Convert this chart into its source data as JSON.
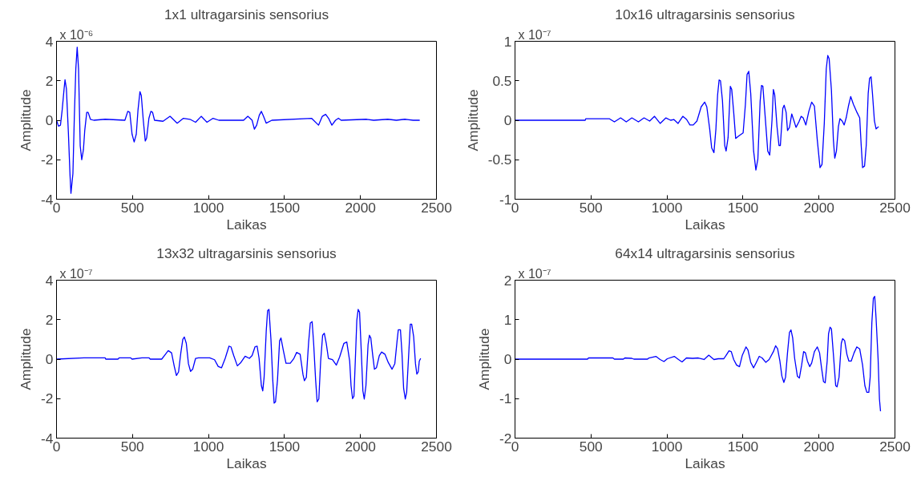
{
  "chart_data": [
    {
      "type": "line",
      "title": "1x1 ultragarsinis sensorius",
      "xlabel": "Laikas",
      "ylabel": "Amplitude",
      "annotations": [
        "x 10⁻⁶"
      ],
      "color": "#0000ff",
      "xlim": [
        0,
        2500
      ],
      "ylim": [
        -4,
        4
      ],
      "xticks": [
        0,
        500,
        1000,
        1500,
        2000,
        2500
      ],
      "yticks": [
        -4,
        -2,
        0,
        2,
        4
      ],
      "x": [
        0,
        13,
        26,
        37,
        50,
        56,
        65,
        78,
        89,
        95,
        108,
        117,
        127,
        136,
        145,
        156,
        166,
        177,
        186,
        199,
        208,
        223,
        245,
        320,
        450,
        469,
        482,
        497,
        511,
        525,
        536,
        549,
        558,
        571,
        584,
        593,
        608,
        621,
        632,
        645,
        701,
        747,
        794,
        835,
        878,
        915,
        952,
        990,
        1030,
        1068,
        1231,
        1259,
        1287,
        1302,
        1317,
        1334,
        1348,
        1362,
        1380,
        1417,
        1678,
        1724,
        1749,
        1771,
        1790,
        1812,
        1836,
        1855,
        1873,
        2041,
        2087,
        2180,
        2236,
        2292,
        2347,
        2390
      ],
      "values": [
        0,
        -0.3,
        -0.25,
        0.5,
        1.6,
        2.05,
        1.6,
        -0.6,
        -2.8,
        -3.7,
        -2.7,
        0.1,
        2.6,
        3.7,
        2.6,
        -1.3,
        -2.0,
        -1.5,
        -0.5,
        0.4,
        0.4,
        0.05,
        0,
        0.05,
        0,
        0.45,
        0.4,
        -0.7,
        -1.1,
        -0.7,
        0.5,
        1.45,
        1.25,
        0,
        -1.05,
        -0.9,
        0.1,
        0.45,
        0.4,
        0,
        -0.05,
        0.2,
        -0.15,
        0.1,
        0.05,
        -0.1,
        0.2,
        -0.1,
        0.1,
        0,
        0,
        0.2,
        0,
        -0.45,
        -0.25,
        0.25,
        0.45,
        0.2,
        -0.15,
        0,
        0.1,
        -0.25,
        0.2,
        0.3,
        0.1,
        -0.25,
        0,
        0.1,
        0,
        0.05,
        0,
        0.05,
        0,
        0.05,
        0,
        0
      ]
    },
    {
      "type": "line",
      "title": "10x16 ultragarsinis sensorius",
      "xlabel": "Laikas",
      "ylabel": "Amplitude",
      "annotations": [
        "x 10⁻⁷"
      ],
      "color": "#0000ff",
      "xlim": [
        0,
        2500
      ],
      "ylim": [
        -1,
        1
      ],
      "xticks": [
        0,
        500,
        1000,
        1500,
        2000,
        2500
      ],
      "yticks": [
        -1,
        -0.5,
        0,
        0.5,
        1
      ],
      "x": [
        0,
        462,
        466,
        620,
        654,
        695,
        732,
        769,
        812,
        849,
        886,
        918,
        955,
        993,
        1024,
        1045,
        1073,
        1104,
        1129,
        1151,
        1173,
        1197,
        1225,
        1248,
        1262,
        1281,
        1294,
        1309,
        1322,
        1333,
        1343,
        1352,
        1365,
        1380,
        1389,
        1402,
        1417,
        1426,
        1439,
        1452,
        1471,
        1501,
        1516,
        1527,
        1538,
        1551,
        1570,
        1585,
        1598,
        1613,
        1622,
        1631,
        1644,
        1663,
        1676,
        1691,
        1700,
        1709,
        1724,
        1737,
        1746,
        1762,
        1771,
        1784,
        1793,
        1806,
        1821,
        1836,
        1849,
        1868,
        1883,
        1896,
        1914,
        1933,
        1952,
        1970,
        1989,
        2007,
        2020,
        2035,
        2048,
        2058,
        2067,
        2082,
        2095,
        2104,
        2115,
        2128,
        2138,
        2153,
        2166,
        2179,
        2194,
        2209,
        2227,
        2250,
        2268,
        2278,
        2287,
        2300,
        2311,
        2324,
        2333,
        2343,
        2352,
        2365,
        2376,
        2393
      ],
      "values": [
        0,
        0,
        0.02,
        0.02,
        -0.02,
        0.03,
        -0.02,
        0.03,
        -0.02,
        0.03,
        -0.01,
        0.05,
        -0.04,
        0.03,
        0,
        0.01,
        -0.04,
        0.05,
        0.01,
        -0.06,
        -0.06,
        -0.01,
        0.17,
        0.23,
        0.17,
        -0.11,
        -0.35,
        -0.41,
        -0.11,
        0.32,
        0.51,
        0.5,
        0.25,
        -0.32,
        -0.39,
        -0.22,
        0.43,
        0.39,
        0.1,
        -0.23,
        -0.2,
        -0.16,
        0.2,
        0.58,
        0.62,
        0.34,
        -0.39,
        -0.63,
        -0.49,
        0.24,
        0.44,
        0.43,
        0.1,
        -0.39,
        -0.44,
        0,
        0.39,
        0.32,
        -0.08,
        -0.32,
        -0.32,
        0.15,
        0.19,
        0.1,
        -0.13,
        -0.09,
        0.08,
        -0.01,
        -0.09,
        -0.02,
        0.05,
        0.03,
        -0.06,
        0.11,
        0.23,
        0.18,
        -0.25,
        -0.6,
        -0.56,
        -0.04,
        0.65,
        0.82,
        0.78,
        0.38,
        -0.25,
        -0.48,
        -0.39,
        -0.08,
        0.02,
        -0.01,
        -0.06,
        0.03,
        0.18,
        0.3,
        0.2,
        0.1,
        0.03,
        -0.32,
        -0.6,
        -0.58,
        -0.32,
        0.34,
        0.53,
        0.55,
        0.34,
        -0.01,
        -0.11,
        -0.08
      ]
    },
    {
      "type": "line",
      "title": "13x32 ultragarsinis sensorius",
      "xlabel": "Laikas",
      "ylabel": "Amplitude",
      "annotations": [
        "x 10⁻⁷"
      ],
      "color": "#0000ff",
      "xlim": [
        0,
        2500
      ],
      "ylim": [
        -4,
        4
      ],
      "xticks": [
        0,
        500,
        1000,
        1500,
        2000,
        2500
      ],
      "yticks": [
        -4,
        -2,
        0,
        2,
        4
      ],
      "x": [
        0,
        180,
        320,
        324,
        404,
        413,
        487,
        497,
        562,
        608,
        617,
        692,
        710,
        735,
        757,
        775,
        789,
        803,
        818,
        831,
        841,
        854,
        868,
        882,
        896,
        915,
        934,
        1008,
        1040,
        1064,
        1086,
        1110,
        1135,
        1148,
        1166,
        1190,
        1213,
        1241,
        1269,
        1287,
        1306,
        1320,
        1333,
        1348,
        1357,
        1366,
        1380,
        1389,
        1398,
        1411,
        1423,
        1432,
        1441,
        1454,
        1468,
        1477,
        1492,
        1510,
        1538,
        1562,
        1580,
        1603,
        1622,
        1631,
        1644,
        1659,
        1670,
        1682,
        1692,
        1705,
        1715,
        1726,
        1738,
        1751,
        1762,
        1775,
        1789,
        1816,
        1841,
        1863,
        1891,
        1910,
        1929,
        1938,
        1948,
        1957,
        1966,
        1976,
        1985,
        1994,
        2005,
        2016,
        2025,
        2036,
        2050,
        2059,
        2068,
        2081,
        2092,
        2105,
        2124,
        2139,
        2161,
        2183,
        2208,
        2226,
        2241,
        2249,
        2263,
        2273,
        2284,
        2295,
        2304,
        2315,
        2328,
        2337,
        2350,
        2362,
        2371,
        2380,
        2387,
        2396
      ],
      "values": [
        0,
        0.07,
        0.07,
        0,
        0,
        0.07,
        0.07,
        0,
        0.07,
        0.07,
        0,
        0,
        0.18,
        0.43,
        0.32,
        -0.37,
        -0.83,
        -0.65,
        0.32,
        1.0,
        1.12,
        0.8,
        -0.23,
        -0.62,
        -0.51,
        0.04,
        0.07,
        0.07,
        -0.03,
        -0.37,
        -0.44,
        0.04,
        0.66,
        0.62,
        0.18,
        -0.34,
        -0.17,
        0.15,
        0.04,
        0.18,
        0.62,
        0.66,
        0.04,
        -1.34,
        -1.61,
        -0.92,
        1.42,
        2.46,
        2.52,
        1.0,
        -1.06,
        -2.23,
        -2.16,
        -1.06,
        0.93,
        1.07,
        0.46,
        -0.21,
        -0.21,
        0.04,
        0.34,
        0.25,
        -0.79,
        -1.09,
        -0.92,
        0.87,
        1.83,
        1.9,
        0.79,
        -1.06,
        -2.16,
        -2.02,
        -0.1,
        1.21,
        1.31,
        0.8,
        0.04,
        -0.03,
        -0.3,
        0.11,
        0.8,
        0.87,
        -0.1,
        -1.34,
        -2.0,
        -1.88,
        -0.1,
        1.97,
        2.52,
        2.38,
        0.46,
        -1.61,
        -2.02,
        -1.34,
        0.73,
        1.21,
        1.07,
        0.18,
        -0.51,
        -0.44,
        0.18,
        0.36,
        0.25,
        -0.17,
        -0.51,
        -0.23,
        0.93,
        1.49,
        1.49,
        0.32,
        -1.48,
        -2.02,
        -1.68,
        -0.1,
        1.77,
        1.77,
        1.14,
        -0.23,
        -0.76,
        -0.65,
        -0.1,
        0.04
      ]
    },
    {
      "type": "line",
      "title": "64x14 ultragarsinis sensorius",
      "xlabel": "Laikas",
      "ylabel": "Amplitude",
      "annotations": [
        "x 10⁻⁷"
      ],
      "color": "#0000ff",
      "xlim": [
        0,
        2500
      ],
      "ylim": [
        -2,
        2
      ],
      "xticks": [
        0,
        500,
        1000,
        1500,
        2000,
        2500
      ],
      "yticks": [
        -2,
        -1,
        0,
        1,
        2
      ],
      "x": [
        0,
        477,
        484,
        644,
        654,
        713,
        723,
        769,
        782,
        872,
        881,
        927,
        955,
        980,
        1002,
        1048,
        1076,
        1099,
        1128,
        1169,
        1206,
        1244,
        1275,
        1309,
        1337,
        1374,
        1393,
        1408,
        1423,
        1439,
        1458,
        1477,
        1495,
        1520,
        1533,
        1551,
        1570,
        1588,
        1607,
        1626,
        1650,
        1672,
        1700,
        1715,
        1728,
        1743,
        1756,
        1769,
        1780,
        1793,
        1806,
        1816,
        1827,
        1840,
        1858,
        1871,
        1886,
        1899,
        1911,
        1924,
        1939,
        1952,
        1970,
        1989,
        2004,
        2017,
        2030,
        2041,
        2054,
        2063,
        2073,
        2082,
        2097,
        2110,
        2119,
        2132,
        2147,
        2156,
        2169,
        2184,
        2197,
        2212,
        2231,
        2249,
        2268,
        2287,
        2302,
        2315,
        2328,
        2337,
        2348,
        2358,
        2367,
        2376,
        2389,
        2398,
        2405
      ],
      "values": [
        0,
        0,
        0.03,
        0.03,
        0,
        0,
        0.03,
        0.02,
        0,
        0,
        0.03,
        0.07,
        -0.01,
        -0.06,
        0.01,
        0.07,
        -0.01,
        -0.07,
        0.03,
        0.02,
        0.03,
        -0.01,
        0.1,
        -0.01,
        0.01,
        0.01,
        0.12,
        0.21,
        0.19,
        -0.01,
        -0.15,
        -0.19,
        0.09,
        0.31,
        0.23,
        -0.08,
        -0.22,
        -0.08,
        0.07,
        0.03,
        -0.08,
        -0.01,
        0.19,
        0.34,
        0.26,
        -0.05,
        -0.43,
        -0.59,
        -0.46,
        0.16,
        0.68,
        0.74,
        0.54,
        0.02,
        -0.43,
        -0.48,
        -0.15,
        0.19,
        0.16,
        -0.05,
        -0.19,
        -0.1,
        0.19,
        0.31,
        0.16,
        -0.22,
        -0.57,
        -0.6,
        -0.05,
        0.64,
        0.81,
        0.77,
        0.02,
        -0.67,
        -0.7,
        -0.46,
        0.4,
        0.52,
        0.47,
        0.12,
        -0.05,
        -0.05,
        0.16,
        0.31,
        0.26,
        -0.15,
        -0.67,
        -0.84,
        -0.84,
        -0.46,
        0.92,
        1.54,
        1.59,
        1.02,
        0.02,
        -1.01,
        -1.32
      ]
    }
  ]
}
